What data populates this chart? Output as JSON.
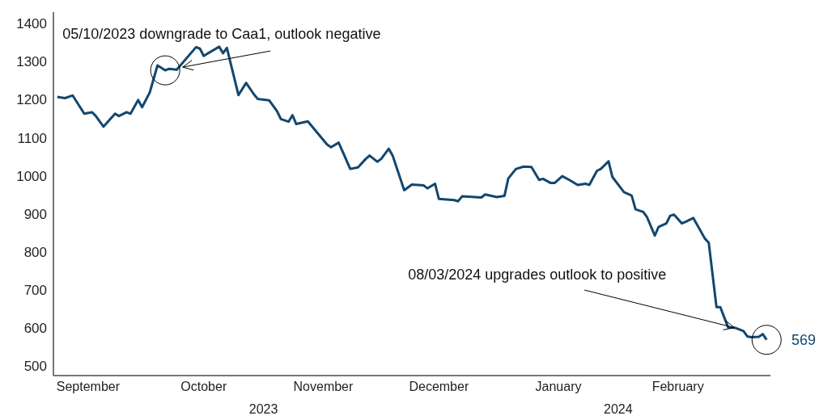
{
  "chart_data": {
    "type": "line",
    "x": [
      "2023-09-07",
      "2023-09-09",
      "2023-09-11",
      "2023-09-14",
      "2023-09-16",
      "2023-09-17",
      "2023-09-19",
      "2023-09-22",
      "2023-09-23",
      "2023-09-25",
      "2023-09-26",
      "2023-09-28",
      "2023-09-29",
      "2023-10-01",
      "2023-10-03",
      "2023-10-05",
      "2023-10-06",
      "2023-10-08",
      "2023-10-13",
      "2023-10-14",
      "2023-10-15",
      "2023-10-19",
      "2023-10-20",
      "2023-10-21",
      "2023-10-24",
      "2023-10-26",
      "2023-10-28",
      "2023-10-29",
      "2023-11-01",
      "2023-11-03",
      "2023-11-04",
      "2023-11-06",
      "2023-11-07",
      "2023-11-08",
      "2023-11-11",
      "2023-11-16",
      "2023-11-17",
      "2023-11-19",
      "2023-11-22",
      "2023-11-24",
      "2023-11-26",
      "2023-11-27",
      "2023-11-29",
      "2023-11-30",
      "2023-12-02",
      "2023-12-03",
      "2023-12-06",
      "2023-12-08",
      "2023-12-11",
      "2023-12-12",
      "2023-12-14",
      "2023-12-15",
      "2023-12-19",
      "2023-12-20",
      "2023-12-21",
      "2023-12-26",
      "2023-12-27",
      "2023-12-30",
      "2024-01-01",
      "2024-01-02",
      "2024-01-04",
      "2024-01-06",
      "2024-01-08",
      "2024-01-10",
      "2024-01-11",
      "2024-01-13",
      "2024-01-14",
      "2024-01-16",
      "2024-01-18",
      "2024-01-20",
      "2024-01-22",
      "2024-01-23",
      "2024-01-25",
      "2024-01-26",
      "2024-01-28",
      "2024-01-29",
      "2024-02-01",
      "2024-02-03",
      "2024-02-04",
      "2024-02-06",
      "2024-02-07",
      "2024-02-09",
      "2024-02-10",
      "2024-02-12",
      "2024-02-13",
      "2024-02-14",
      "2024-02-16",
      "2024-02-17",
      "2024-02-19",
      "2024-02-22",
      "2024-02-23",
      "2024-02-25",
      "2024-02-26",
      "2024-02-28",
      "2024-03-01",
      "2024-03-03",
      "2024-03-04",
      "2024-03-05",
      "2024-03-07",
      "2024-03-08",
      "2024-03-09"
    ],
    "series": [
      {
        "color": "#12476f",
        "values": [
          1207,
          1204,
          1211,
          1163,
          1167,
          1157,
          1129,
          1163,
          1157,
          1167,
          1163,
          1199,
          1180,
          1219,
          1290,
          1277,
          1281,
          1279,
          1338,
          1334,
          1315,
          1339,
          1322,
          1336,
          1212,
          1244,
          1214,
          1202,
          1198,
          1170,
          1149,
          1142,
          1159,
          1136,
          1143,
          1082,
          1075,
          1087,
          1018,
          1022,
          1044,
          1053,
          1037,
          1044,
          1071,
          1053,
          962,
          977,
          975,
          967,
          979,
          939,
          936,
          933,
          946,
          943,
          951,
          944,
          947,
          993,
          1018,
          1024,
          1023,
          989,
          992,
          981,
          981,
          999,
          988,
          976,
          979,
          976,
          1013,
          1018,
          1038,
          997,
          957,
          948,
          912,
          905,
          891,
          843,
          866,
          875,
          895,
          898,
          875,
          879,
          889,
          835,
          824,
          655,
          655,
          602,
          600,
          592,
          578,
          576,
          577,
          584,
          569
        ],
        "value_labels": [
          null,
          null,
          null,
          null,
          null,
          null,
          null,
          null,
          null,
          null,
          null,
          null,
          null,
          null,
          null,
          null,
          null,
          null,
          null,
          null,
          null,
          null,
          null,
          null,
          null,
          null,
          null,
          null,
          null,
          null,
          null,
          null,
          null,
          null,
          null,
          null,
          null,
          null,
          null,
          null,
          null,
          null,
          null,
          null,
          null,
          null,
          null,
          null,
          null,
          null,
          null,
          null,
          null,
          null,
          null,
          null,
          null,
          null,
          null,
          null,
          null,
          null,
          null,
          null,
          null,
          null,
          null,
          null,
          null,
          null,
          null,
          null,
          null,
          null,
          null,
          null,
          null,
          null,
          null,
          null,
          null,
          null,
          null,
          null,
          null,
          null,
          null,
          null,
          null,
          null,
          null,
          null,
          null,
          null,
          null,
          null,
          null,
          null,
          null,
          null,
          "569"
        ]
      }
    ],
    "xlim": [
      "2023-09-06",
      "2024-03-10"
    ],
    "xticks": [
      {
        "value": "2023-09-15",
        "label": "September"
      },
      {
        "value": "2023-10-15",
        "label": "October"
      },
      {
        "value": "2023-11-15",
        "label": "November"
      },
      {
        "value": "2023-12-15",
        "label": "December"
      },
      {
        "value": "2024-01-15",
        "label": "January"
      },
      {
        "value": "2024-02-15",
        "label": "February"
      }
    ],
    "ylim": [
      475,
      1430
    ],
    "yticks": [
      500,
      600,
      700,
      800,
      900,
      1000,
      1100,
      1200,
      1300,
      1400
    ],
    "grid": false,
    "annotations": [
      {
        "text": "05/10/2023 downgrade to Caa1, outlook negative",
        "x": "2023-10-05",
        "y": 1277
      },
      {
        "text": "08/03/2024 upgrades outlook to positive",
        "x": "2024-03-01",
        "y": 600
      },
      "2023",
      "2024"
    ]
  }
}
